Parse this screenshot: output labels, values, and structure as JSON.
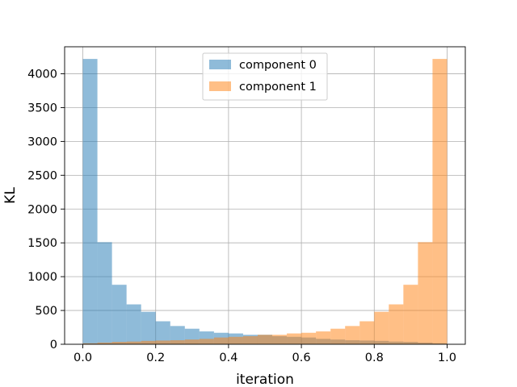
{
  "chart_data": {
    "type": "bar",
    "subtype": "histogram",
    "title": "",
    "xlabel": "iteration",
    "ylabel": "KL",
    "xlim": [
      -0.05,
      1.05
    ],
    "ylim": [
      0,
      4400
    ],
    "bin_edges": [
      0.0,
      0.04,
      0.08,
      0.12,
      0.16,
      0.2,
      0.24,
      0.28,
      0.32,
      0.36,
      0.4,
      0.44,
      0.48,
      0.52,
      0.56,
      0.6,
      0.64,
      0.68,
      0.72,
      0.76,
      0.8,
      0.84,
      0.88,
      0.92,
      0.96,
      1.0
    ],
    "x_ticks": [
      0.0,
      0.2,
      0.4,
      0.6,
      0.8,
      1.0
    ],
    "x_tick_labels": [
      "0.0",
      "0.2",
      "0.4",
      "0.6",
      "0.8",
      "1.0"
    ],
    "y_ticks": [
      0,
      500,
      1000,
      1500,
      2000,
      2500,
      3000,
      3500,
      4000
    ],
    "y_tick_labels": [
      "0",
      "500",
      "1000",
      "1500",
      "2000",
      "2500",
      "3000",
      "3500",
      "4000"
    ],
    "grid": true,
    "legend_position": "top-center",
    "series": [
      {
        "name": "component 0",
        "color": "#1f77b4",
        "opacity": 0.5,
        "values": [
          4220,
          1510,
          880,
          590,
          480,
          340,
          270,
          230,
          190,
          170,
          160,
          140,
          140,
          120,
          110,
          100,
          80,
          70,
          60,
          55,
          50,
          40,
          35,
          25,
          15
        ]
      },
      {
        "name": "component 1",
        "color": "#ff7f0e",
        "opacity": 0.5,
        "values": [
          15,
          25,
          35,
          40,
          50,
          55,
          60,
          70,
          80,
          100,
          110,
          120,
          140,
          140,
          160,
          170,
          190,
          230,
          270,
          340,
          480,
          590,
          880,
          1510,
          4220
        ]
      }
    ]
  }
}
